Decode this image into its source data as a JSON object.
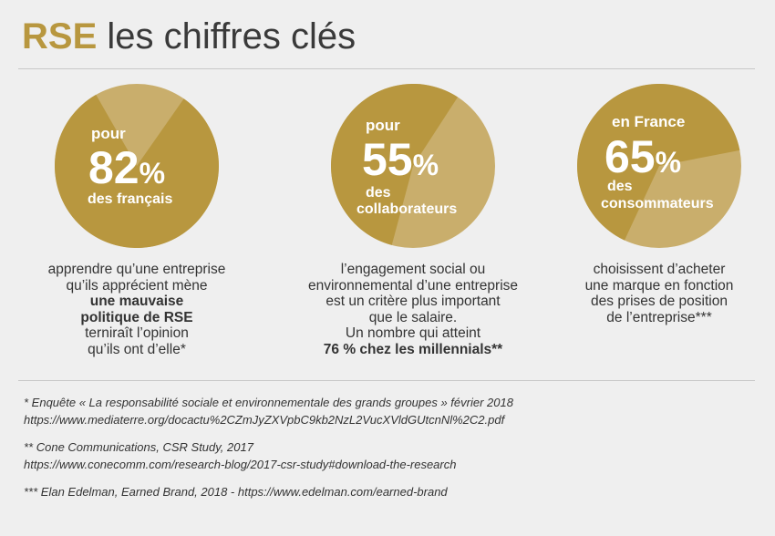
{
  "header": {
    "title_accent": "RSE",
    "title_rest": "les chiffres clés"
  },
  "colors": {
    "gold": "#b8973f",
    "gold_light": "#c9ae6c",
    "background": "#efefef",
    "text": "#333333"
  },
  "stats": [
    {
      "prefix": "pour",
      "value": 82,
      "value_label": "82",
      "unit": "%",
      "suffix_lines": [
        "des français"
      ],
      "description": [
        {
          "text": "apprendre qu’une entreprise",
          "bold": false
        },
        {
          "text": "qu’ils apprécient mène",
          "bold": false
        },
        {
          "text": "une mauvaise",
          "bold": true
        },
        {
          "text": "politique de RSE",
          "bold": true
        },
        {
          "text": "terniraît l’opinion",
          "bold": false
        },
        {
          "text": "qu’ils ont d’elle*",
          "bold": false
        }
      ]
    },
    {
      "prefix": "pour",
      "value": 55,
      "value_label": "55",
      "unit": "%",
      "suffix_lines": [
        "des",
        "collaborateurs"
      ],
      "description": [
        {
          "text": "l’engagement social ou",
          "bold": false
        },
        {
          "text": "environnemental d’une entreprise",
          "bold": false
        },
        {
          "text": "est un critère plus important",
          "bold": false
        },
        {
          "text": "que le salaire.",
          "bold": false
        },
        {
          "text": "Un nombre qui atteint",
          "bold": false
        },
        {
          "text": "76 % chez les millennials**",
          "bold": true
        }
      ]
    },
    {
      "prefix": "en France",
      "value": 65,
      "value_label": "65",
      "unit": "%",
      "suffix_lines": [
        "des",
        "consommateurs"
      ],
      "description": [
        {
          "text": "choisissent d’acheter",
          "bold": false
        },
        {
          "text": "une marque en fonction",
          "bold": false
        },
        {
          "text": "des prises de position",
          "bold": false
        },
        {
          "text": "de l’entreprise***",
          "bold": false
        }
      ]
    }
  ],
  "footnotes": [
    {
      "lines": [
        "* Enquête « La responsabilité sociale et environnementale des grands groupes » février 2018",
        "https://www.mediaterre.org/docactu%2CZmJyZXVpbC9kb2NzL2VucXVldGUtcnNl%2C2.pdf"
      ]
    },
    {
      "lines": [
        "** Cone Communications, CSR Study, 2017",
        "https://www.conecomm.com/research-blog/2017-csr-study#download-the-research"
      ]
    },
    {
      "lines": [
        "*** Elan Edelman, Earned Brand, 2018 - https://www.edelman.com/earned-brand"
      ]
    }
  ]
}
